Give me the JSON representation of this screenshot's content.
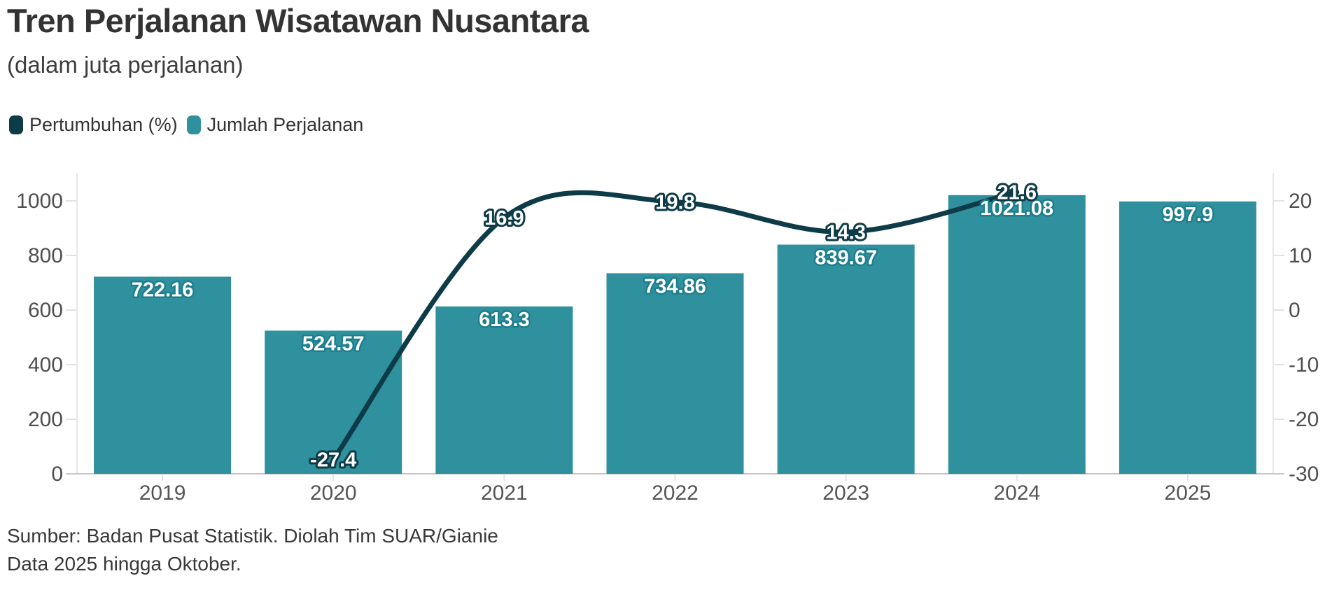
{
  "header": {
    "title": "Tren Perjalanan Wisatawan Nusantara",
    "subtitle": "(dalam juta perjalanan)"
  },
  "legend": {
    "items": [
      {
        "label": "Pertumbuhan (%)",
        "color": "#0d3b47"
      },
      {
        "label": "Jumlah Perjalanan",
        "color": "#2f909e"
      }
    ]
  },
  "chart_data": {
    "type": "bar",
    "subtype": "bar-with-line-overlay",
    "title": "Tren Perjalanan Wisatawan Nusantara",
    "subtitle": "(dalam juta perjalanan)",
    "categories": [
      "2019",
      "2020",
      "2021",
      "2022",
      "2023",
      "2024",
      "2025"
    ],
    "series": [
      {
        "name": "Jumlah Perjalanan",
        "type": "bar",
        "axis": "left",
        "color": "#2f909e",
        "label_fill": "#ffffff",
        "label_stroke": "#1e7e8d",
        "values": [
          722.16,
          524.57,
          613.3,
          734.86,
          839.67,
          1021.08,
          997.9
        ],
        "labels": [
          "722.16",
          "524.57",
          "613.3",
          "734.86",
          "839.67",
          "1021.08",
          "997.9"
        ]
      },
      {
        "name": "Pertumbuhan (%)",
        "type": "line",
        "axis": "right",
        "color": "#0d3b47",
        "label_fill": "#ffffff",
        "label_stroke": "#0d3b47",
        "categories": [
          "2020",
          "2021",
          "2022",
          "2023",
          "2024"
        ],
        "values": [
          -27.4,
          16.9,
          19.8,
          14.3,
          21.6
        ],
        "labels": [
          "-27.4",
          "16.9",
          "19.8",
          "14.3",
          "21.6"
        ]
      }
    ],
    "left_axis": {
      "ticks": [
        "0",
        "200",
        "400",
        "600",
        "800",
        "1000"
      ],
      "range": [
        0,
        1000
      ]
    },
    "right_axis": {
      "ticks": [
        "-30",
        "-20",
        "-10",
        "0",
        "10",
        "20"
      ],
      "range": [
        -30,
        20
      ]
    },
    "grid": false,
    "legend_position": "top-left",
    "axis_colors": {
      "tick_label": "#4f4f4f",
      "x_label": "#555555",
      "axis_line": "#e7e7e7",
      "baseline": "#c8c8c8",
      "tick_mark": "#e2e2e2"
    }
  },
  "footer": {
    "lines": [
      "Sumber: Badan Pusat Statistik. Diolah Tim SUAR/Gianie",
      "Data 2025 hingga Oktober."
    ]
  }
}
